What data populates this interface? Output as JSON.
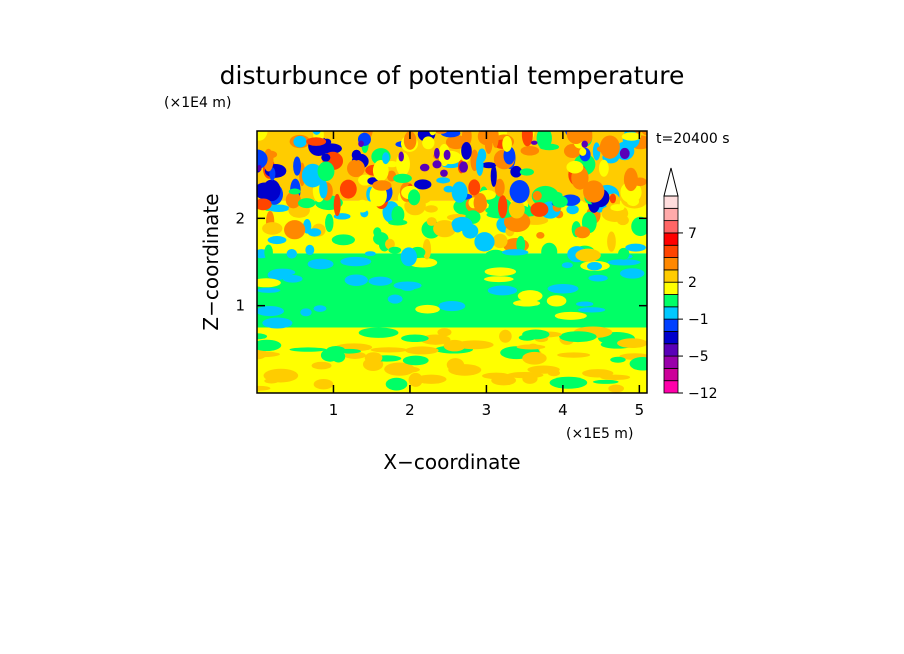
{
  "chart_data": {
    "type": "heatmap",
    "title": "disturbunce of potential temperature",
    "time_label": "t=20400 s",
    "xlabel": "X−coordinate",
    "ylabel": "Z−coordinate",
    "x_unit": "(×1E5 m)",
    "y_unit": "(×1E4 m)",
    "xlim": [
      0,
      5.1
    ],
    "ylim": [
      0,
      3.0
    ],
    "x_ticks": [
      "1",
      "2",
      "3",
      "4",
      "5"
    ],
    "y_ticks": [
      "1",
      "2"
    ],
    "colorbar": {
      "shown_labels": [
        "7",
        "2",
        "−1",
        "−5",
        "−12"
      ],
      "extend": "max",
      "colors": [
        "#ff00aa",
        "#cc0099",
        "#9900aa",
        "#5a00b8",
        "#0000cc",
        "#0040ff",
        "#00c8ff",
        "#00ff66",
        "#ffff00",
        "#ffcc00",
        "#ff8800",
        "#ff4400",
        "#ff0000",
        "#ff6666",
        "#ffaaaa",
        "#ffdddd"
      ]
    },
    "field_description": "layers by height: lower 0-0.75 mostly yellow/orange (~2); 0.75-1.6 green (~0); 1.6-2.2 mixed green/cyan/yellow; 2.2-3.0 wave pattern alternating dark blue (-5 to -12) and orange/red (2 to 7)"
  }
}
